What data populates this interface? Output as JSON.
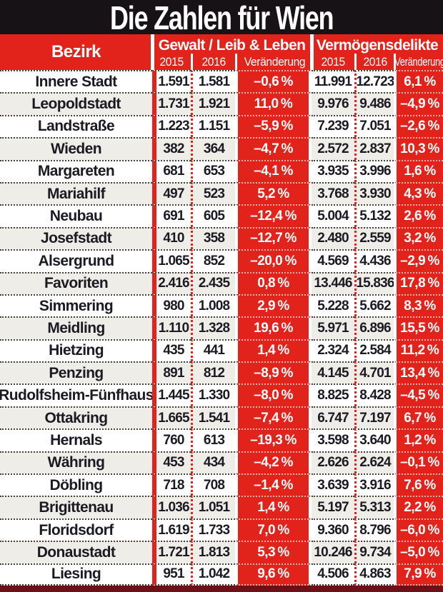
{
  "title": "Die Zahlen für Wien",
  "colors": {
    "accent_red": "#e2231c",
    "title_bar_black": "#161216",
    "bottom_bar_maroon": "#6e1015",
    "row_alt_background": "#efede8",
    "text_ink": "#1b1a22"
  },
  "header": {
    "bezirk_label": "Bezirk",
    "group1": {
      "label": "Gewalt / Leib & Leben",
      "y2015": "2015",
      "y2016": "2016",
      "change": "Veränderung"
    },
    "group2": {
      "label": "Vermögensdelikte",
      "y2015": "2015",
      "y2016": "2016",
      "change": "Veränderung"
    }
  },
  "chart_data": {
    "type": "table",
    "title": "Die Zahlen für Wien",
    "column_groups": [
      "Bezirk",
      "Gewalt / Leib & Leben",
      "Vermögensdelikte"
    ],
    "columns": [
      "Bezirk",
      "Gewalt 2015",
      "Gewalt 2016",
      "Gewalt Veränderung",
      "Vermögensdelikte 2015",
      "Vermögensdelikte 2016",
      "Vermögensdelikte Veränderung"
    ],
    "rows": [
      [
        "Innere Stadt",
        "1.591",
        "1.581",
        "–0,6 %",
        "11.991",
        "12.723",
        "6,1 %"
      ],
      [
        "Leopoldstadt",
        "1.731",
        "1.921",
        "11,0 %",
        "9.976",
        "9.486",
        "–4,9 %"
      ],
      [
        "Landstraße",
        "1.223",
        "1.151",
        "–5,9 %",
        "7.239",
        "7.051",
        "–2,6 %"
      ],
      [
        "Wieden",
        "382",
        "364",
        "–4,7 %",
        "2.572",
        "2.837",
        "10,3 %"
      ],
      [
        "Margareten",
        "681",
        "653",
        "–4,1 %",
        "3.935",
        "3.996",
        "1,6 %"
      ],
      [
        "Mariahilf",
        "497",
        "523",
        "5,2 %",
        "3.768",
        "3.930",
        "4,3 %"
      ],
      [
        "Neubau",
        "691",
        "605",
        "–12,4 %",
        "5.004",
        "5.132",
        "2,6 %"
      ],
      [
        "Josefstadt",
        "410",
        "358",
        "–12,7 %",
        "2.480",
        "2.559",
        "3,2 %"
      ],
      [
        "Alsergrund",
        "1.065",
        "852",
        "–20,0 %",
        "4.569",
        "4.436",
        "–2,9 %"
      ],
      [
        "Favoriten",
        "2.416",
        "2.435",
        "0,8 %",
        "13.446",
        "15.836",
        "17,8 %"
      ],
      [
        "Simmering",
        "980",
        "1.008",
        "2,9 %",
        "5.228",
        "5.662",
        "8,3 %"
      ],
      [
        "Meidling",
        "1.110",
        "1.328",
        "19,6 %",
        "5.971",
        "6.896",
        "15,5 %"
      ],
      [
        "Hietzing",
        "435",
        "441",
        "1,4 %",
        "2.324",
        "2.584",
        "11,2 %"
      ],
      [
        "Penzing",
        "891",
        "812",
        "–8,9 %",
        "4.145",
        "4.701",
        "13,4 %"
      ],
      [
        "Rudolfsheim-Fünfhaus",
        "1.445",
        "1.330",
        "–8,0 %",
        "8.825",
        "8.428",
        "–4,5 %"
      ],
      [
        "Ottakring",
        "1.665",
        "1.541",
        "–7,4 %",
        "6.747",
        "7.197",
        "6,7 %"
      ],
      [
        "Hernals",
        "760",
        "613",
        "–19,3 %",
        "3.598",
        "3.640",
        "1,2 %"
      ],
      [
        "Währing",
        "453",
        "434",
        "–4,2 %",
        "2.626",
        "2.624",
        "–0,1 %"
      ],
      [
        "Döbling",
        "718",
        "708",
        "–1,4 %",
        "3.639",
        "3.916",
        "7,6 %"
      ],
      [
        "Brigittenau",
        "1.036",
        "1.051",
        "1,4 %",
        "5.197",
        "5.313",
        "2,2 %"
      ],
      [
        "Floridsdorf",
        "1.619",
        "1.733",
        "7,0 %",
        "9.360",
        "8.796",
        "–6,0 %"
      ],
      [
        "Donaustadt",
        "1.721",
        "1.813",
        "5,3 %",
        "10.246",
        "9.734",
        "–5,0 %"
      ],
      [
        "Liesing",
        "951",
        "1.042",
        "9,6 %",
        "4.506",
        "4.863",
        "7,9 %"
      ]
    ]
  }
}
